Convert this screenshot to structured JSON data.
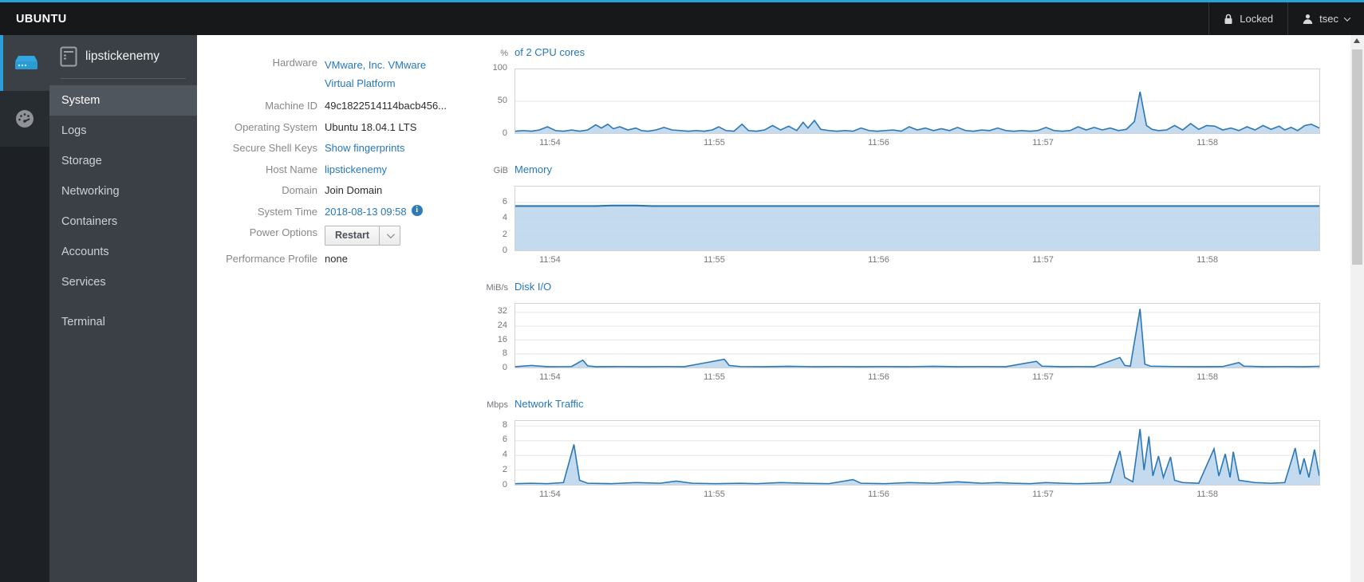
{
  "colors": {
    "accent": "#2b9fd8",
    "link": "#2577b9",
    "chart_line": "#2b77b5",
    "chart_fill": "#b4d0e9",
    "topbar_bg": "#171819",
    "sidebar_bg": "#3a4046",
    "selected_item_bg": "#50565e"
  },
  "topbar": {
    "brand": "UBUNTU",
    "locked_label": "Locked",
    "user": "tsec"
  },
  "sidebar": {
    "host": "lipstickenemy",
    "rail": [
      {
        "icon": "server-icon",
        "active": true
      },
      {
        "icon": "dashboard-icon",
        "active": false
      }
    ],
    "items": [
      {
        "label": "System",
        "selected": true,
        "gap": false
      },
      {
        "label": "Logs",
        "selected": false,
        "gap": false
      },
      {
        "label": "Storage",
        "selected": false,
        "gap": false
      },
      {
        "label": "Networking",
        "selected": false,
        "gap": false
      },
      {
        "label": "Containers",
        "selected": false,
        "gap": false
      },
      {
        "label": "Accounts",
        "selected": false,
        "gap": false
      },
      {
        "label": "Services",
        "selected": false,
        "gap": false
      },
      {
        "label": "Terminal",
        "selected": false,
        "gap": true
      }
    ]
  },
  "system": {
    "rows": [
      {
        "label": "Hardware",
        "value": "VMware, Inc. VMware Virtual Platform",
        "type": "link",
        "wrap": true
      },
      {
        "label": "Machine ID",
        "value": "49c1822514114bacb456...",
        "type": "text",
        "wrap": false
      },
      {
        "label": "Operating System",
        "value": "Ubuntu 18.04.1 LTS",
        "type": "text",
        "wrap": false
      },
      {
        "label": "Secure Shell Keys",
        "value": "Show fingerprints",
        "type": "link",
        "wrap": false
      },
      {
        "label": "Host Name",
        "value": "lipstickenemy",
        "type": "link",
        "wrap": false
      },
      {
        "label": "Domain",
        "value": "Join Domain",
        "type": "text",
        "wrap": false
      },
      {
        "label": "System Time",
        "value": "2018-08-13 09:58",
        "type": "link-info",
        "wrap": false
      },
      {
        "label": "Power Options",
        "value": "Restart",
        "type": "button-group",
        "wrap": false
      },
      {
        "label": "Performance Profile",
        "value": "none",
        "type": "text",
        "wrap": false
      }
    ]
  },
  "chart_data": [
    {
      "id": "cpu",
      "type": "area",
      "unit": "%",
      "title": "of 2 CPU cores",
      "ylim": [
        0,
        100
      ],
      "yticks": [
        100,
        50,
        0
      ],
      "grid": true,
      "legend": "none",
      "xticks": [
        {
          "f": 0.044,
          "label": "11:54"
        },
        {
          "f": 0.248,
          "label": "11:55"
        },
        {
          "f": 0.452,
          "label": "11:56"
        },
        {
          "f": 0.656,
          "label": "11:57"
        },
        {
          "f": 0.86,
          "label": "11:58"
        }
      ],
      "series": [
        [
          0,
          3
        ],
        [
          0.01,
          4
        ],
        [
          0.02,
          3
        ],
        [
          0.03,
          5
        ],
        [
          0.04,
          10
        ],
        [
          0.05,
          4
        ],
        [
          0.06,
          3
        ],
        [
          0.07,
          5
        ],
        [
          0.08,
          3
        ],
        [
          0.09,
          5
        ],
        [
          0.1,
          13
        ],
        [
          0.107,
          8
        ],
        [
          0.115,
          14
        ],
        [
          0.122,
          7
        ],
        [
          0.13,
          10
        ],
        [
          0.14,
          5
        ],
        [
          0.15,
          8
        ],
        [
          0.157,
          4
        ],
        [
          0.165,
          3
        ],
        [
          0.175,
          5
        ],
        [
          0.185,
          9
        ],
        [
          0.195,
          5
        ],
        [
          0.205,
          4
        ],
        [
          0.215,
          3
        ],
        [
          0.225,
          4
        ],
        [
          0.235,
          3
        ],
        [
          0.245,
          5
        ],
        [
          0.253,
          10
        ],
        [
          0.262,
          4
        ],
        [
          0.272,
          3
        ],
        [
          0.282,
          14
        ],
        [
          0.29,
          4
        ],
        [
          0.3,
          3
        ],
        [
          0.31,
          5
        ],
        [
          0.32,
          12
        ],
        [
          0.33,
          5
        ],
        [
          0.34,
          11
        ],
        [
          0.35,
          4
        ],
        [
          0.358,
          17
        ],
        [
          0.364,
          8
        ],
        [
          0.372,
          20
        ],
        [
          0.38,
          6
        ],
        [
          0.39,
          4
        ],
        [
          0.4,
          3
        ],
        [
          0.41,
          4
        ],
        [
          0.42,
          3
        ],
        [
          0.43,
          8
        ],
        [
          0.44,
          4
        ],
        [
          0.45,
          3
        ],
        [
          0.46,
          4
        ],
        [
          0.47,
          5
        ],
        [
          0.48,
          3
        ],
        [
          0.49,
          10
        ],
        [
          0.5,
          5
        ],
        [
          0.51,
          8
        ],
        [
          0.52,
          4
        ],
        [
          0.53,
          7
        ],
        [
          0.54,
          4
        ],
        [
          0.55,
          9
        ],
        [
          0.56,
          4
        ],
        [
          0.57,
          3
        ],
        [
          0.58,
          5
        ],
        [
          0.59,
          4
        ],
        [
          0.6,
          8
        ],
        [
          0.61,
          4
        ],
        [
          0.62,
          3
        ],
        [
          0.63,
          4
        ],
        [
          0.64,
          3
        ],
        [
          0.65,
          4
        ],
        [
          0.66,
          9
        ],
        [
          0.67,
          4
        ],
        [
          0.68,
          3
        ],
        [
          0.69,
          4
        ],
        [
          0.7,
          10
        ],
        [
          0.71,
          5
        ],
        [
          0.72,
          9
        ],
        [
          0.73,
          5
        ],
        [
          0.74,
          8
        ],
        [
          0.75,
          4
        ],
        [
          0.76,
          6
        ],
        [
          0.77,
          18
        ],
        [
          0.777,
          65
        ],
        [
          0.785,
          12
        ],
        [
          0.792,
          6
        ],
        [
          0.8,
          4
        ],
        [
          0.81,
          5
        ],
        [
          0.82,
          12
        ],
        [
          0.83,
          5
        ],
        [
          0.84,
          15
        ],
        [
          0.85,
          6
        ],
        [
          0.86,
          12
        ],
        [
          0.87,
          11
        ],
        [
          0.88,
          5
        ],
        [
          0.89,
          8
        ],
        [
          0.9,
          4
        ],
        [
          0.91,
          10
        ],
        [
          0.92,
          5
        ],
        [
          0.93,
          12
        ],
        [
          0.94,
          6
        ],
        [
          0.95,
          11
        ],
        [
          0.957,
          5
        ],
        [
          0.965,
          9
        ],
        [
          0.973,
          4
        ],
        [
          0.982,
          12
        ],
        [
          0.99,
          14
        ],
        [
          1,
          8
        ]
      ]
    },
    {
      "id": "memory",
      "type": "area",
      "unit": "GiB",
      "title": "Memory",
      "ylim": [
        0,
        8
      ],
      "yticks": [
        6,
        4,
        2,
        0
      ],
      "grid": true,
      "legend": "none",
      "xticks": [
        {
          "f": 0.044,
          "label": "11:54"
        },
        {
          "f": 0.248,
          "label": "11:55"
        },
        {
          "f": 0.452,
          "label": "11:56"
        },
        {
          "f": 0.656,
          "label": "11:57"
        },
        {
          "f": 0.86,
          "label": "11:58"
        }
      ],
      "series": [
        [
          0,
          5.55
        ],
        [
          0.05,
          5.55
        ],
        [
          0.1,
          5.55
        ],
        [
          0.12,
          5.62
        ],
        [
          0.15,
          5.62
        ],
        [
          0.17,
          5.55
        ],
        [
          0.3,
          5.55
        ],
        [
          0.5,
          5.55
        ],
        [
          0.7,
          5.55
        ],
        [
          0.85,
          5.55
        ],
        [
          1,
          5.55
        ]
      ]
    },
    {
      "id": "disk-io",
      "type": "area",
      "unit": "MiB/s",
      "title": "Disk I/O",
      "ylim": [
        0,
        37
      ],
      "yticks": [
        32,
        24,
        16,
        8,
        0
      ],
      "grid": true,
      "legend": "none",
      "xticks": [
        {
          "f": 0.044,
          "label": "11:54"
        },
        {
          "f": 0.248,
          "label": "11:55"
        },
        {
          "f": 0.452,
          "label": "11:56"
        },
        {
          "f": 0.656,
          "label": "11:57"
        },
        {
          "f": 0.86,
          "label": "11:58"
        }
      ],
      "series": [
        [
          0,
          0.5
        ],
        [
          0.02,
          1.2
        ],
        [
          0.04,
          0.5
        ],
        [
          0.07,
          0.6
        ],
        [
          0.084,
          4.3
        ],
        [
          0.09,
          1
        ],
        [
          0.1,
          0.5
        ],
        [
          0.13,
          0.6
        ],
        [
          0.16,
          0.5
        ],
        [
          0.19,
          0.6
        ],
        [
          0.21,
          0.5
        ],
        [
          0.26,
          4.8
        ],
        [
          0.266,
          1.2
        ],
        [
          0.28,
          0.6
        ],
        [
          0.31,
          0.5
        ],
        [
          0.34,
          0.7
        ],
        [
          0.37,
          0.5
        ],
        [
          0.4,
          0.6
        ],
        [
          0.43,
          0.5
        ],
        [
          0.46,
          0.6
        ],
        [
          0.49,
          0.5
        ],
        [
          0.52,
          0.7
        ],
        [
          0.55,
          0.5
        ],
        [
          0.58,
          0.6
        ],
        [
          0.61,
          0.5
        ],
        [
          0.648,
          3.6
        ],
        [
          0.655,
          0.8
        ],
        [
          0.68,
          0.5
        ],
        [
          0.7,
          0.6
        ],
        [
          0.72,
          0.5
        ],
        [
          0.752,
          5.8
        ],
        [
          0.758,
          1.2
        ],
        [
          0.765,
          0.8
        ],
        [
          0.777,
          34
        ],
        [
          0.783,
          2
        ],
        [
          0.79,
          0.8
        ],
        [
          0.82,
          0.6
        ],
        [
          0.85,
          0.5
        ],
        [
          0.88,
          0.6
        ],
        [
          0.9,
          2.9
        ],
        [
          0.906,
          0.8
        ],
        [
          0.93,
          0.5
        ],
        [
          0.96,
          0.6
        ],
        [
          0.98,
          0.5
        ],
        [
          1,
          0.7
        ]
      ]
    },
    {
      "id": "network-traffic",
      "type": "area",
      "unit": "Mbps",
      "title": "Network Traffic",
      "ylim": [
        0,
        8.7
      ],
      "yticks": [
        8,
        6,
        4,
        2,
        0
      ],
      "grid": true,
      "legend": "none",
      "xticks": [
        {
          "f": 0.044,
          "label": "11:54"
        },
        {
          "f": 0.248,
          "label": "11:55"
        },
        {
          "f": 0.452,
          "label": "11:56"
        },
        {
          "f": 0.656,
          "label": "11:57"
        },
        {
          "f": 0.86,
          "label": "11:58"
        }
      ],
      "series": [
        [
          0,
          0.15
        ],
        [
          0.02,
          0.2
        ],
        [
          0.04,
          0.15
        ],
        [
          0.06,
          0.3
        ],
        [
          0.073,
          5.5
        ],
        [
          0.08,
          0.6
        ],
        [
          0.09,
          0.2
        ],
        [
          0.12,
          0.15
        ],
        [
          0.15,
          0.3
        ],
        [
          0.18,
          0.2
        ],
        [
          0.2,
          0.5
        ],
        [
          0.22,
          0.2
        ],
        [
          0.25,
          0.15
        ],
        [
          0.28,
          0.2
        ],
        [
          0.3,
          0.15
        ],
        [
          0.33,
          0.3
        ],
        [
          0.36,
          0.2
        ],
        [
          0.39,
          0.15
        ],
        [
          0.42,
          0.7
        ],
        [
          0.43,
          0.2
        ],
        [
          0.46,
          0.15
        ],
        [
          0.49,
          0.3
        ],
        [
          0.52,
          0.2
        ],
        [
          0.55,
          0.4
        ],
        [
          0.58,
          0.2
        ],
        [
          0.6,
          0.3
        ],
        [
          0.62,
          0.2
        ],
        [
          0.64,
          0.15
        ],
        [
          0.66,
          0.3
        ],
        [
          0.68,
          0.2
        ],
        [
          0.7,
          0.15
        ],
        [
          0.72,
          0.2
        ],
        [
          0.74,
          0.3
        ],
        [
          0.752,
          4.6
        ],
        [
          0.758,
          1
        ],
        [
          0.768,
          0.4
        ],
        [
          0.777,
          7.6
        ],
        [
          0.782,
          2
        ],
        [
          0.788,
          6.6
        ],
        [
          0.793,
          1.2
        ],
        [
          0.8,
          3.9
        ],
        [
          0.806,
          1
        ],
        [
          0.815,
          3.8
        ],
        [
          0.82,
          0.6
        ],
        [
          0.83,
          0.3
        ],
        [
          0.85,
          0.2
        ],
        [
          0.869,
          4.9
        ],
        [
          0.875,
          1.2
        ],
        [
          0.883,
          4.2
        ],
        [
          0.889,
          1
        ],
        [
          0.893,
          4.5
        ],
        [
          0.9,
          0.6
        ],
        [
          0.92,
          0.3
        ],
        [
          0.94,
          0.2
        ],
        [
          0.957,
          0.3
        ],
        [
          0.97,
          5
        ],
        [
          0.976,
          1.4
        ],
        [
          0.981,
          3.6
        ],
        [
          0.987,
          1
        ],
        [
          0.994,
          4.8
        ],
        [
          1,
          1.2
        ]
      ]
    }
  ]
}
